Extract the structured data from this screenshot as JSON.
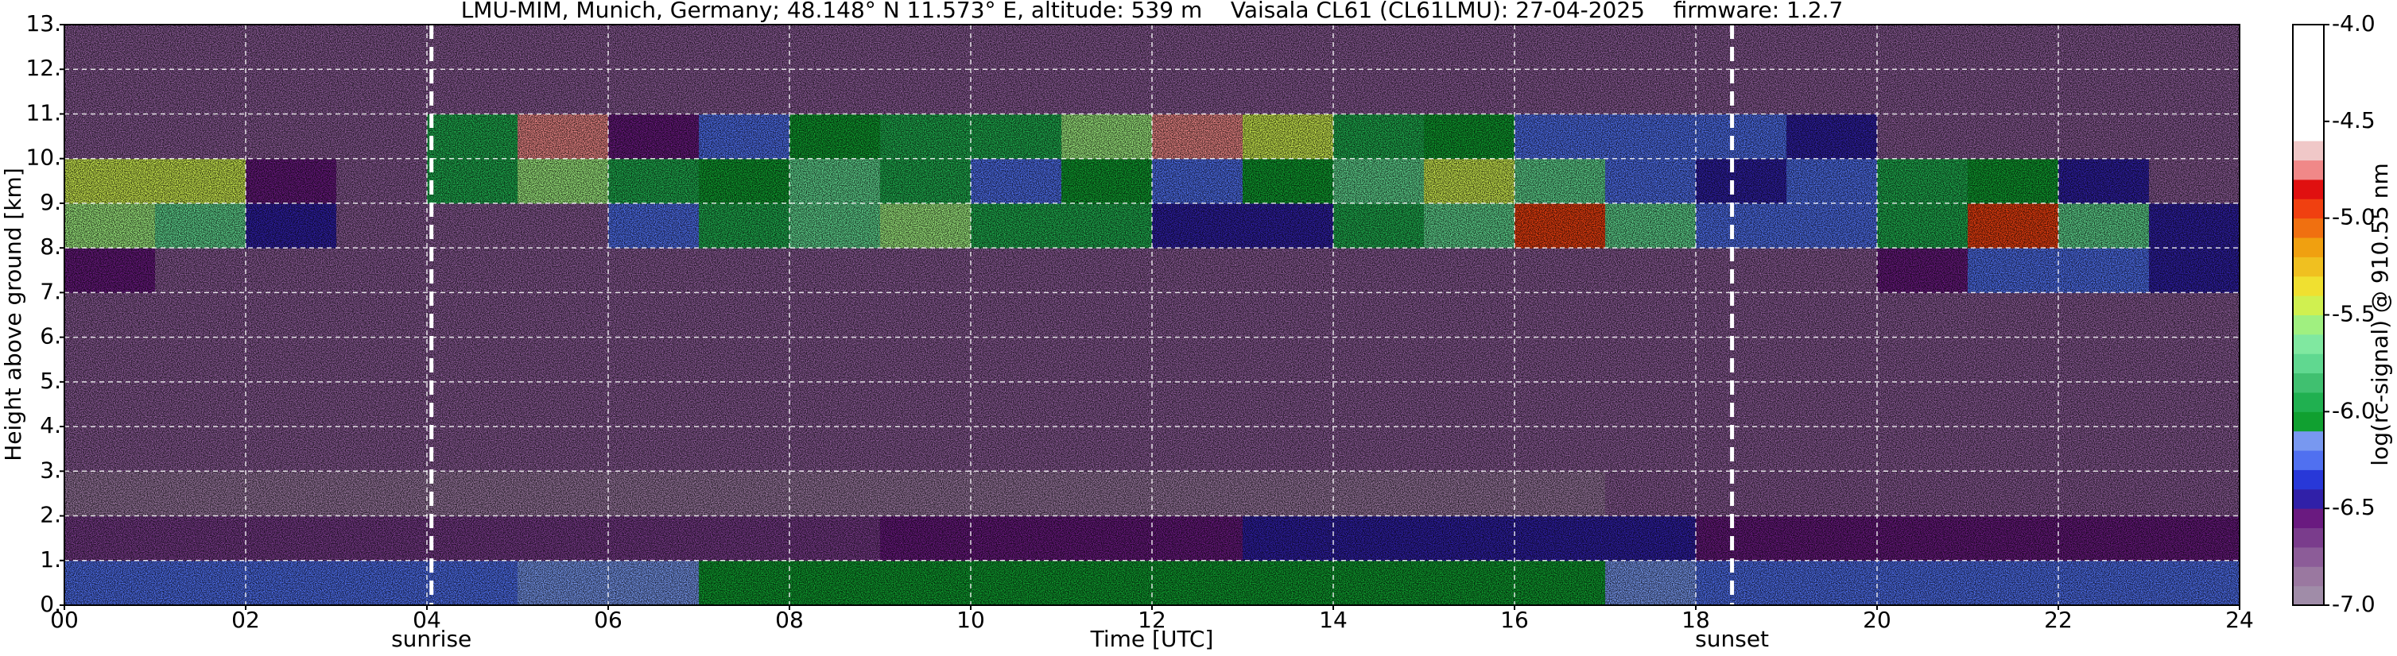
{
  "chart_data": {
    "type": "heatmap",
    "title": "LMU-MIM, Munich, Germany; 48.148° N 11.573° E, altitude: 539 m    Vaisala CL61 (CL61LMU): 27-04-2025    firmware: 1.2.7",
    "xlabel": "Time [UTC]",
    "ylabel": "Height above ground [km]",
    "colorbar_label": "log(rc-signal) @ 910.55 nm",
    "xlim": [
      0,
      24
    ],
    "xticks": [
      {
        "value": 0,
        "label": "00"
      },
      {
        "value": 2,
        "label": "02"
      },
      {
        "value": 4,
        "label": "04"
      },
      {
        "value": 6,
        "label": "06"
      },
      {
        "value": 8,
        "label": "08"
      },
      10,
      12,
      14,
      16,
      18,
      20,
      22,
      24
    ],
    "ylim": [
      0,
      13
    ],
    "yticks": [
      {
        "value": 0,
        "label": "0."
      },
      {
        "value": 1,
        "label": "1."
      },
      {
        "value": 2,
        "label": "2."
      },
      {
        "value": 3,
        "label": "3."
      },
      {
        "value": 4,
        "label": "4."
      },
      {
        "value": 5,
        "label": "5."
      },
      {
        "value": 6,
        "label": "6."
      },
      {
        "value": 7,
        "label": "7."
      },
      {
        "value": 8,
        "label": "8."
      },
      {
        "value": 9,
        "label": "9."
      },
      {
        "value": 10,
        "label": "10."
      },
      {
        "value": 11,
        "label": "11."
      },
      {
        "value": 12,
        "label": "12."
      },
      {
        "value": 13,
        "label": "13."
      }
    ],
    "clim": [
      -7,
      -4
    ],
    "cticks": [
      {
        "value": -4,
        "label": "-4.0"
      },
      -4.5,
      {
        "value": -5,
        "label": "-5.0"
      },
      -5.5,
      {
        "value": -6,
        "label": "-6.0"
      },
      -6.5,
      {
        "value": -7,
        "label": "-7.0"
      }
    ],
    "colormap": [
      "#a08ca8",
      "#9a78a0",
      "#8c5c98",
      "#7a3c8c",
      "#6a1a80",
      "#3020a8",
      "#2838d8",
      "#5070f0",
      "#7898f0",
      "#10a030",
      "#20b050",
      "#40c070",
      "#60d890",
      "#80e8a0",
      "#a0f080",
      "#d0f050",
      "#f0e030",
      "#f0c020",
      "#f0a010",
      "#f07010",
      "#f04010",
      "#e01010",
      "#f08888",
      "#f0c8c8",
      "#ffffff",
      "#ffffff",
      "#ffffff",
      "#ffffff",
      "#ffffff",
      "#ffffff"
    ],
    "grid": true,
    "x": [
      0,
      1,
      2,
      3,
      4,
      5,
      6,
      7,
      8,
      9,
      10,
      11,
      12,
      13,
      14,
      15,
      16,
      17,
      18,
      19,
      20,
      21,
      22,
      23
    ],
    "y": [
      0,
      1,
      2,
      3,
      4,
      5,
      6,
      7,
      8,
      9,
      10,
      11,
      12
    ],
    "z": [
      [
        -6.2,
        -6.2,
        -6.2,
        -6.2,
        -6.2,
        -6.15,
        -6.15,
        -6.1,
        -6.1,
        -6.05,
        -6.05,
        -6.02,
        -6.02,
        -6.02,
        -6.05,
        -6.05,
        -6.1,
        -6.15,
        -6.2,
        -6.2,
        -6.2,
        -6.2,
        -6.25,
        -6.25
      ],
      [
        -6.65,
        -6.65,
        -6.65,
        -6.65,
        -6.65,
        -6.65,
        -6.65,
        -6.65,
        -6.65,
        -6.6,
        -6.6,
        -6.6,
        -6.55,
        -6.5,
        -6.5,
        -6.5,
        -6.5,
        -6.5,
        -6.55,
        -6.55,
        -6.55,
        -6.55,
        -6.55,
        -6.55
      ],
      [
        -6.85,
        -6.85,
        -6.85,
        -6.85,
        -6.85,
        -6.85,
        -6.85,
        -6.85,
        -6.85,
        -6.85,
        -6.85,
        -6.85,
        -6.85,
        -6.85,
        -6.85,
        -6.85,
        -6.85,
        -6.8,
        -6.8,
        -6.8,
        -6.8,
        -6.8,
        -6.8,
        -6.8
      ],
      [
        -6.75,
        -6.75,
        -6.75,
        -6.75,
        -6.75,
        -6.75,
        -6.75,
        -6.75,
        -6.75,
        -6.75,
        -6.75,
        -6.75,
        -6.75,
        -6.75,
        -6.75,
        -6.75,
        -6.75,
        -6.75,
        -6.75,
        -6.75,
        -6.75,
        -6.75,
        -6.75,
        -6.75
      ],
      [
        -6.75,
        -6.75,
        -6.75,
        -6.75,
        -6.75,
        -6.75,
        -6.75,
        -6.75,
        -6.75,
        -6.75,
        -6.75,
        -6.75,
        -6.75,
        -6.75,
        -6.75,
        -6.75,
        -6.75,
        -6.75,
        -6.75,
        -6.75,
        -6.75,
        -6.75,
        -6.75,
        -6.75
      ],
      [
        -6.75,
        -6.75,
        -6.75,
        -6.75,
        -6.75,
        -6.75,
        -6.75,
        -6.75,
        -6.75,
        -6.75,
        -6.75,
        -6.75,
        -6.75,
        -6.75,
        -6.75,
        -6.75,
        -6.75,
        -6.75,
        -6.75,
        -6.75,
        -6.75,
        -6.75,
        -6.75,
        -6.75
      ],
      [
        -6.7,
        -6.75,
        -6.75,
        -6.75,
        -6.75,
        -6.75,
        -6.75,
        -6.75,
        -6.75,
        -6.75,
        -6.75,
        -6.75,
        -6.75,
        -6.75,
        -6.75,
        -6.75,
        -6.75,
        -6.75,
        -6.75,
        -6.75,
        -6.75,
        -6.75,
        -6.75,
        -6.75
      ],
      [
        -6.6,
        -6.75,
        -6.75,
        -6.75,
        -6.75,
        -6.75,
        -6.75,
        -6.75,
        -6.75,
        -6.75,
        -6.75,
        -6.75,
        -6.75,
        -6.75,
        -6.75,
        -6.75,
        -6.75,
        -6.75,
        -6.75,
        -6.75,
        -6.6,
        -6.2,
        -6.2,
        -6.5
      ],
      [
        -5.6,
        -5.7,
        -6.5,
        -6.7,
        -6.7,
        -6.7,
        -6.3,
        -6.0,
        -5.8,
        -5.6,
        -5.9,
        -6.0,
        -6.4,
        -6.5,
        -6.0,
        -5.7,
        -4.9,
        -5.8,
        -6.3,
        -6.3,
        -6.0,
        -5.0,
        -5.8,
        -6.4
      ],
      [
        -5.5,
        -5.4,
        -6.6,
        -6.7,
        -5.9,
        -5.6,
        -6.0,
        -6.1,
        -5.8,
        -6.0,
        -6.2,
        -6.1,
        -6.2,
        -6.1,
        -5.8,
        -5.5,
        -5.8,
        -6.2,
        -6.4,
        -6.2,
        -5.9,
        -6.1,
        -6.4,
        -6.7
      ],
      [
        -6.7,
        -6.7,
        -6.7,
        -6.7,
        -6.0,
        -4.8,
        -6.6,
        -6.3,
        -6.1,
        -5.9,
        -5.9,
        -5.6,
        -4.8,
        -5.4,
        -5.9,
        -6.1,
        -6.2,
        -6.3,
        -6.3,
        -6.5,
        -6.7,
        -6.7,
        -6.7,
        -6.7
      ],
      [
        -6.7,
        -6.7,
        -6.7,
        -6.7,
        -6.7,
        -6.7,
        -6.7,
        -6.7,
        -6.7,
        -6.7,
        -6.7,
        -6.7,
        -6.7,
        -6.7,
        -6.7,
        -6.7,
        -6.7,
        -6.7,
        -6.7,
        -6.7,
        -6.7,
        -6.7,
        -6.7,
        -6.7
      ],
      [
        -6.7,
        -6.7,
        -6.7,
        -6.7,
        -6.7,
        -6.7,
        -6.7,
        -6.7,
        -6.7,
        -6.7,
        -6.7,
        -6.7,
        -6.7,
        -6.7,
        -6.7,
        -6.7,
        -6.7,
        -6.7,
        -6.7,
        -6.7,
        -6.7,
        -6.7,
        -6.7,
        -6.7
      ]
    ],
    "annotations": [
      {
        "x": 4.05,
        "label": "sunrise"
      },
      {
        "x": 18.4,
        "label": "sunset"
      }
    ]
  }
}
